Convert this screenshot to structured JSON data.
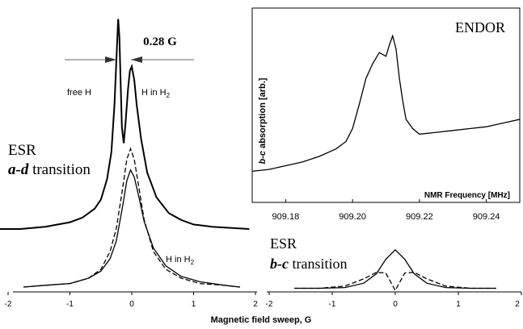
{
  "chart_data": [
    {
      "panel": "left",
      "type": "line",
      "xlabel": "Magnetic field sweep, G",
      "xlim": [
        -2,
        2
      ],
      "xticks": [
        -2,
        -1,
        0,
        1,
        2
      ],
      "annotations": {
        "width_label": "0.28 G",
        "free_h": "free H",
        "h_in_h2_top": "H in H",
        "h_in_h2_bottom": "H in H",
        "subscript": "2",
        "esr": "ESR",
        "transition_bold": "a-d",
        "transition_rest": " transition"
      },
      "series": [
        {
          "style": "solid",
          "offset": 1,
          "x": [
            -2.5,
            -1.8,
            -1.4,
            -1.0,
            -0.8,
            -0.6,
            -0.5,
            -0.4,
            -0.33,
            -0.28,
            -0.24,
            -0.22,
            -0.2,
            -0.16,
            -0.13,
            -0.1,
            -0.06,
            -0.03,
            0.0,
            0.04,
            0.08,
            0.15,
            0.25,
            0.4,
            0.6,
            0.8,
            1.0,
            1.3,
            1.6,
            1.9
          ],
          "y": [
            0.0,
            0.0,
            0.01,
            0.03,
            0.05,
            0.09,
            0.13,
            0.22,
            0.34,
            0.55,
            0.8,
            0.93,
            0.85,
            0.45,
            0.38,
            0.47,
            0.62,
            0.7,
            0.72,
            0.66,
            0.55,
            0.4,
            0.25,
            0.14,
            0.07,
            0.04,
            0.02,
            0.01,
            0.005,
            0.0
          ]
        },
        {
          "style": "dashed",
          "offset": 0,
          "x": [
            -1.75,
            -1.4,
            -1.0,
            -0.7,
            -0.5,
            -0.35,
            -0.25,
            -0.15,
            -0.08,
            -0.02,
            0.04,
            0.12,
            0.2,
            0.35,
            0.55,
            0.8,
            1.1,
            1.5,
            1.75
          ],
          "y": [
            0.0,
            0.01,
            0.02,
            0.05,
            0.1,
            0.2,
            0.33,
            0.55,
            0.72,
            0.78,
            0.72,
            0.55,
            0.38,
            0.2,
            0.1,
            0.05,
            0.02,
            0.01,
            0.0
          ]
        },
        {
          "style": "solid",
          "offset": 0,
          "x": [
            -1.75,
            -1.4,
            -1.0,
            -0.7,
            -0.5,
            -0.35,
            -0.25,
            -0.15,
            -0.08,
            -0.02,
            0.04,
            0.12,
            0.2,
            0.35,
            0.55,
            0.8,
            1.1,
            1.5,
            1.75
          ],
          "y": [
            0.0,
            0.01,
            0.02,
            0.05,
            0.09,
            0.16,
            0.26,
            0.45,
            0.6,
            0.66,
            0.62,
            0.5,
            0.37,
            0.22,
            0.12,
            0.06,
            0.03,
            0.01,
            0.0
          ]
        }
      ]
    },
    {
      "panel": "inset",
      "type": "line",
      "title": "ENDOR",
      "ylabel_bold": "b-c",
      "ylabel_rest": " absorption [arb.]",
      "xlabel": "NMR Frequency [MHz]",
      "xlim": [
        909.17,
        909.25
      ],
      "xticks": [
        909.18,
        909.2,
        909.22,
        909.24
      ],
      "xtick_labels": [
        "909.18",
        "909.20",
        "909.22",
        "909.24"
      ],
      "series": [
        {
          "style": "solid",
          "x": [
            909.17,
            909.175,
            909.18,
            909.185,
            909.19,
            909.195,
            909.198,
            909.2,
            909.202,
            909.204,
            909.206,
            909.208,
            909.21,
            909.211,
            909.212,
            909.213,
            909.214,
            909.215,
            909.216,
            909.218,
            909.22,
            909.225,
            909.23,
            909.235,
            909.24,
            909.245,
            909.25
          ],
          "y": [
            0.12,
            0.13,
            0.15,
            0.17,
            0.2,
            0.24,
            0.28,
            0.35,
            0.48,
            0.62,
            0.7,
            0.76,
            0.74,
            0.8,
            0.85,
            0.78,
            0.62,
            0.5,
            0.4,
            0.35,
            0.32,
            0.33,
            0.34,
            0.35,
            0.36,
            0.38,
            0.4
          ]
        }
      ]
    },
    {
      "panel": "bottom-right",
      "type": "line",
      "xlim": [
        -2,
        2
      ],
      "xticks": [
        -2,
        -1,
        0,
        1,
        2
      ],
      "annotations": {
        "esr": "ESR",
        "transition_bold": "b-c",
        "transition_rest": " transition"
      },
      "series": [
        {
          "style": "solid",
          "x": [
            -1.6,
            -1.2,
            -0.8,
            -0.5,
            -0.3,
            -0.15,
            0.0,
            0.15,
            0.3,
            0.5,
            0.8,
            1.2,
            1.6
          ],
          "y": [
            0.05,
            0.05,
            0.06,
            0.12,
            0.25,
            0.45,
            0.58,
            0.45,
            0.25,
            0.12,
            0.06,
            0.05,
            0.05
          ]
        },
        {
          "style": "dashed",
          "x": [
            -1.6,
            -1.2,
            -0.8,
            -0.5,
            -0.3,
            -0.15,
            -0.05,
            0.0,
            0.05,
            0.15,
            0.3,
            0.5,
            0.8,
            1.2,
            1.6
          ],
          "y": [
            0.05,
            0.05,
            0.08,
            0.18,
            0.27,
            0.26,
            0.1,
            0.02,
            0.1,
            0.26,
            0.27,
            0.18,
            0.08,
            0.05,
            0.05
          ]
        }
      ]
    }
  ]
}
